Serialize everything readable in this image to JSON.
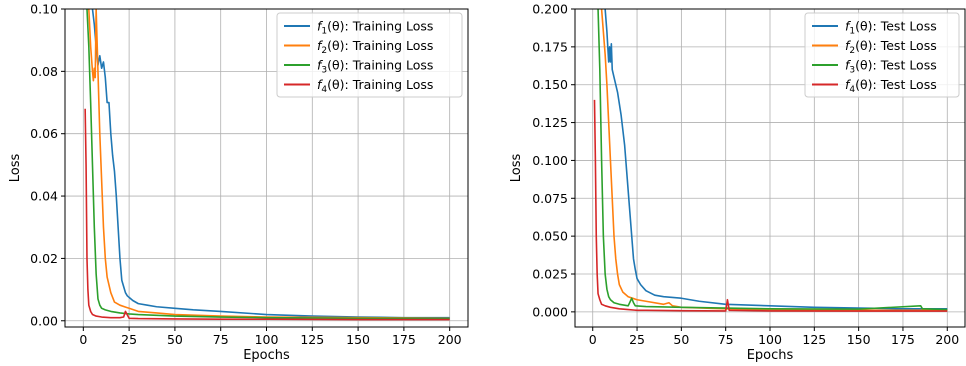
{
  "chart_data": [
    {
      "type": "line",
      "xlabel": "Epochs",
      "ylabel": "Loss",
      "xlim": [
        -10,
        210
      ],
      "ylim": [
        -0.002,
        0.1
      ],
      "xticks": [
        0,
        25,
        50,
        75,
        100,
        125,
        150,
        175,
        200
      ],
      "yticks": [
        0.0,
        0.02,
        0.04,
        0.06,
        0.08,
        0.1
      ],
      "ytick_labels": [
        "0.00",
        "0.02",
        "0.04",
        "0.06",
        "0.08",
        "0.10"
      ],
      "grid": true,
      "legend_position": "top-right",
      "series": [
        {
          "name_prefix": "f",
          "subscript": "1",
          "name_suffix": "(θ): Training Loss",
          "color": "#1f77b4",
          "x": [
            5,
            6,
            7,
            8,
            9,
            10,
            11,
            12,
            13,
            14,
            15,
            16,
            17,
            18,
            19,
            20,
            21,
            22,
            23,
            24,
            25,
            27,
            30,
            35,
            40,
            50,
            60,
            75,
            100,
            125,
            150,
            175,
            200
          ],
          "y": [
            0.1,
            0.095,
            0.088,
            0.082,
            0.085,
            0.081,
            0.083,
            0.078,
            0.07,
            0.07,
            0.06,
            0.053,
            0.048,
            0.04,
            0.03,
            0.02,
            0.013,
            0.011,
            0.009,
            0.008,
            0.0075,
            0.0065,
            0.0055,
            0.005,
            0.0045,
            0.004,
            0.0035,
            0.003,
            0.002,
            0.0015,
            0.0012,
            0.001,
            0.001
          ]
        },
        {
          "name_prefix": "f",
          "subscript": "2",
          "name_suffix": "(θ): Training Loss",
          "color": "#ff7f0e",
          "x": [
            3,
            4,
            5,
            5.5,
            6,
            6.5,
            7,
            8,
            9,
            10,
            11,
            12,
            13,
            15,
            17,
            20,
            25,
            30,
            40,
            50,
            75,
            100,
            150,
            200
          ],
          "y": [
            0.1,
            0.088,
            0.08,
            0.077,
            0.081,
            0.078,
            0.1,
            0.08,
            0.06,
            0.045,
            0.03,
            0.02,
            0.014,
            0.009,
            0.006,
            0.005,
            0.004,
            0.003,
            0.0025,
            0.002,
            0.0015,
            0.0012,
            0.001,
            0.0008
          ]
        },
        {
          "name_prefix": "f",
          "subscript": "3",
          "name_suffix": "(θ): Training Loss",
          "color": "#2ca02c",
          "x": [
            2,
            3,
            4,
            5,
            6,
            7,
            8,
            9,
            10,
            12,
            15,
            20,
            25,
            30,
            50,
            75,
            100,
            150,
            200
          ],
          "y": [
            0.1,
            0.088,
            0.07,
            0.05,
            0.03,
            0.015,
            0.007,
            0.005,
            0.004,
            0.0035,
            0.003,
            0.0025,
            0.0022,
            0.002,
            0.0015,
            0.0012,
            0.001,
            0.0008,
            0.0007
          ]
        },
        {
          "name_prefix": "f",
          "subscript": "4",
          "name_suffix": "(θ): Training Loss",
          "color": "#d62728",
          "x": [
            1,
            1.5,
            2,
            2.5,
            3,
            4,
            5,
            7,
            10,
            15,
            20,
            22,
            23,
            25,
            30,
            50,
            75,
            100,
            150,
            200
          ],
          "y": [
            0.068,
            0.05,
            0.02,
            0.01,
            0.005,
            0.003,
            0.002,
            0.0015,
            0.0012,
            0.001,
            0.001,
            0.0012,
            0.003,
            0.0008,
            0.0007,
            0.0006,
            0.0005,
            0.0005,
            0.0004,
            0.0004
          ]
        }
      ]
    },
    {
      "type": "line",
      "xlabel": "Epochs",
      "ylabel": "Loss",
      "xlim": [
        -10,
        210
      ],
      "ylim": [
        -0.01,
        0.2
      ],
      "xticks": [
        0,
        25,
        50,
        75,
        100,
        125,
        150,
        175,
        200
      ],
      "yticks": [
        0.0,
        0.025,
        0.05,
        0.075,
        0.1,
        0.125,
        0.15,
        0.175,
        0.2
      ],
      "ytick_labels": [
        "0.000",
        "0.025",
        "0.050",
        "0.075",
        "0.100",
        "0.125",
        "0.150",
        "0.175",
        "0.200"
      ],
      "grid": true,
      "legend_position": "top-right",
      "series": [
        {
          "name_prefix": "f",
          "subscript": "1",
          "name_suffix": "(θ): Test Loss",
          "color": "#1f77b4",
          "x": [
            7,
            8,
            9,
            9.5,
            10,
            10.5,
            11,
            12,
            14,
            16,
            18,
            20,
            22,
            23,
            24,
            25,
            27,
            30,
            35,
            40,
            50,
            60,
            75,
            100,
            125,
            150,
            175,
            200
          ],
          "y": [
            0.2,
            0.185,
            0.165,
            0.175,
            0.165,
            0.177,
            0.16,
            0.155,
            0.145,
            0.13,
            0.11,
            0.08,
            0.05,
            0.035,
            0.028,
            0.022,
            0.018,
            0.014,
            0.011,
            0.01,
            0.009,
            0.007,
            0.005,
            0.004,
            0.003,
            0.0025,
            0.002,
            0.002
          ]
        },
        {
          "name_prefix": "f",
          "subscript": "2",
          "name_suffix": "(θ): Test Loss",
          "color": "#ff7f0e",
          "x": [
            5,
            6,
            7,
            8,
            9,
            10,
            11,
            12,
            13,
            14,
            15,
            17,
            20,
            25,
            30,
            40,
            43,
            45,
            50,
            75,
            100,
            150,
            200
          ],
          "y": [
            0.2,
            0.185,
            0.17,
            0.15,
            0.125,
            0.1,
            0.075,
            0.05,
            0.035,
            0.025,
            0.018,
            0.013,
            0.01,
            0.008,
            0.007,
            0.005,
            0.006,
            0.004,
            0.003,
            0.002,
            0.0015,
            0.001,
            0.001
          ]
        },
        {
          "name_prefix": "f",
          "subscript": "3",
          "name_suffix": "(θ): Test Loss",
          "color": "#2ca02c",
          "x": [
            3,
            4,
            5,
            6,
            7,
            8,
            9,
            10,
            12,
            15,
            20,
            22,
            23,
            24,
            30,
            50,
            75,
            100,
            150,
            185,
            186,
            200
          ],
          "y": [
            0.2,
            0.16,
            0.1,
            0.05,
            0.025,
            0.015,
            0.01,
            0.008,
            0.006,
            0.005,
            0.004,
            0.009,
            0.006,
            0.004,
            0.0035,
            0.003,
            0.0025,
            0.002,
            0.0018,
            0.004,
            0.002,
            0.0015
          ]
        },
        {
          "name_prefix": "f",
          "subscript": "4",
          "name_suffix": "(θ): Test Loss",
          "color": "#d62728",
          "x": [
            1,
            1.5,
            2,
            2.5,
            3,
            4,
            5,
            7,
            10,
            15,
            20,
            25,
            30,
            50,
            75,
            76,
            77,
            100,
            150,
            200
          ],
          "y": [
            0.14,
            0.1,
            0.05,
            0.025,
            0.012,
            0.008,
            0.005,
            0.004,
            0.003,
            0.002,
            0.0015,
            0.001,
            0.001,
            0.0008,
            0.0006,
            0.008,
            0.001,
            0.0006,
            0.0005,
            0.0005
          ]
        }
      ]
    }
  ]
}
